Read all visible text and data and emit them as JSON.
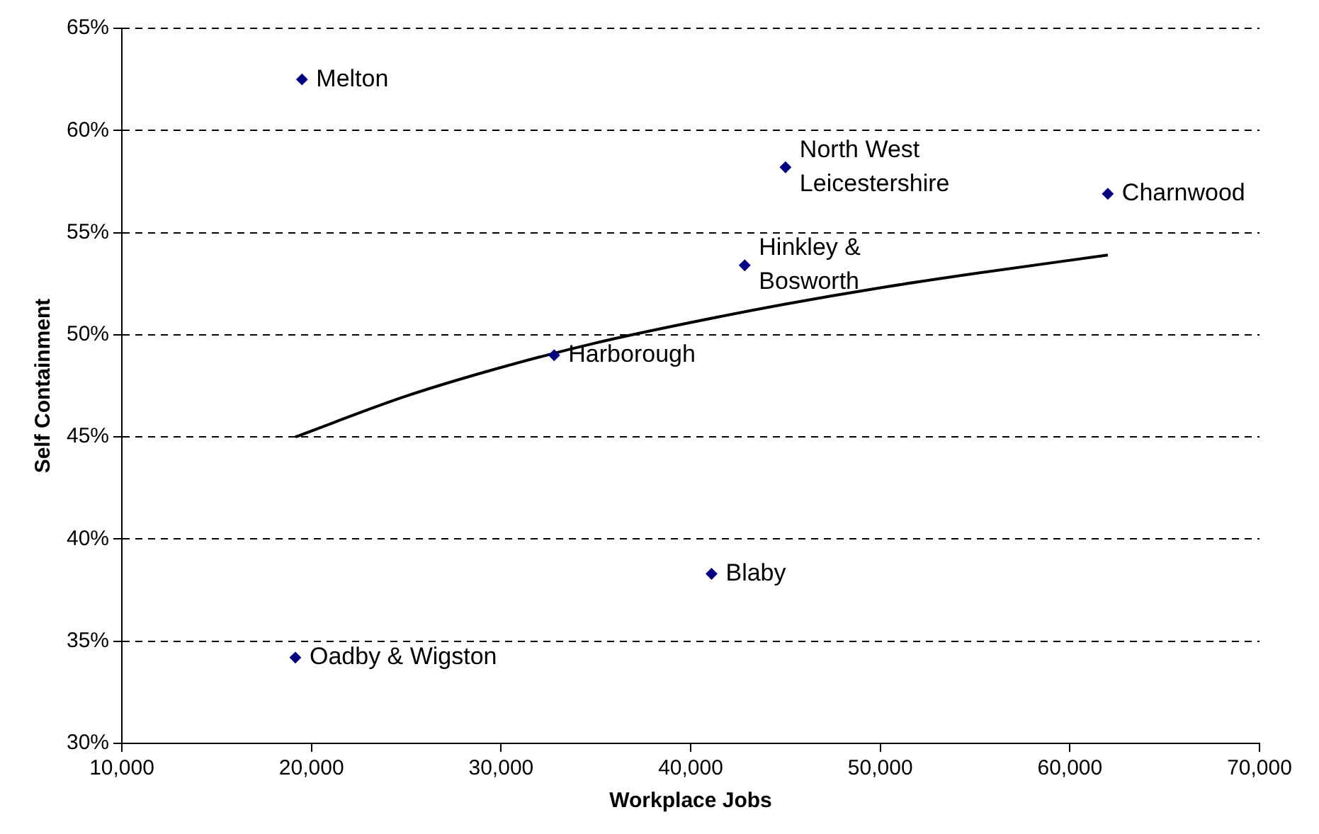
{
  "chart_data": {
    "type": "scatter",
    "xlabel": "Workplace Jobs",
    "ylabel": "Self Containment",
    "series": [
      {
        "color": "#000080",
        "x": [
          19500,
          45000,
          62000,
          42850,
          32800,
          41100,
          19150
        ],
        "values": [
          62.5,
          58.2,
          56.9,
          53.4,
          49.0,
          38.3,
          34.2
        ]
      },
      {
        "type": "line",
        "marker": "none",
        "color": "#000000",
        "x": [
          19150,
          25000,
          30000,
          35000,
          40000,
          45000,
          50000,
          55000,
          62000
        ],
        "values": [
          45.0,
          47.0,
          48.4,
          49.6,
          50.6,
          51.5,
          52.3,
          53.0,
          53.9
        ]
      }
    ],
    "annotations": [
      {
        "text": "Melton",
        "x": 19500,
        "y": 62.5
      },
      {
        "text": "North West\nLeicestershire",
        "x": 45000,
        "y": 58.2
      },
      {
        "text": "Charnwood",
        "x": 62000,
        "y": 56.9
      },
      {
        "text": "Hinkley &\nBosworth",
        "x": 42850,
        "y": 53.4
      },
      {
        "text": "Harborough",
        "x": 32800,
        "y": 49.0
      },
      {
        "text": "Blaby",
        "x": 41100,
        "y": 38.3
      },
      {
        "text": "Oadby & Wigston",
        "x": 19150,
        "y": 34.2
      }
    ],
    "xlim": [
      10000,
      70000
    ],
    "xticks": [
      {
        "value": 10000,
        "label": "10,000"
      },
      {
        "value": 20000,
        "label": "20,000"
      },
      {
        "value": 30000,
        "label": "30,000"
      },
      {
        "value": 40000,
        "label": "40,000"
      },
      {
        "value": 50000,
        "label": "50,000"
      },
      {
        "value": 60000,
        "label": "60,000"
      },
      {
        "value": 70000,
        "label": "70,000"
      }
    ],
    "ylim": [
      30,
      65
    ],
    "yticks": [
      {
        "value": 30,
        "label": "30%"
      },
      {
        "value": 35,
        "label": "35%"
      },
      {
        "value": 40,
        "label": "40%"
      },
      {
        "value": 45,
        "label": "45%"
      },
      {
        "value": 50,
        "label": "50%"
      },
      {
        "value": 55,
        "label": "55%"
      },
      {
        "value": 60,
        "label": "60%"
      },
      {
        "value": 65,
        "label": "65%"
      }
    ],
    "grid": "y",
    "legend": false,
    "marker": "diamond",
    "line_style": "solid"
  }
}
